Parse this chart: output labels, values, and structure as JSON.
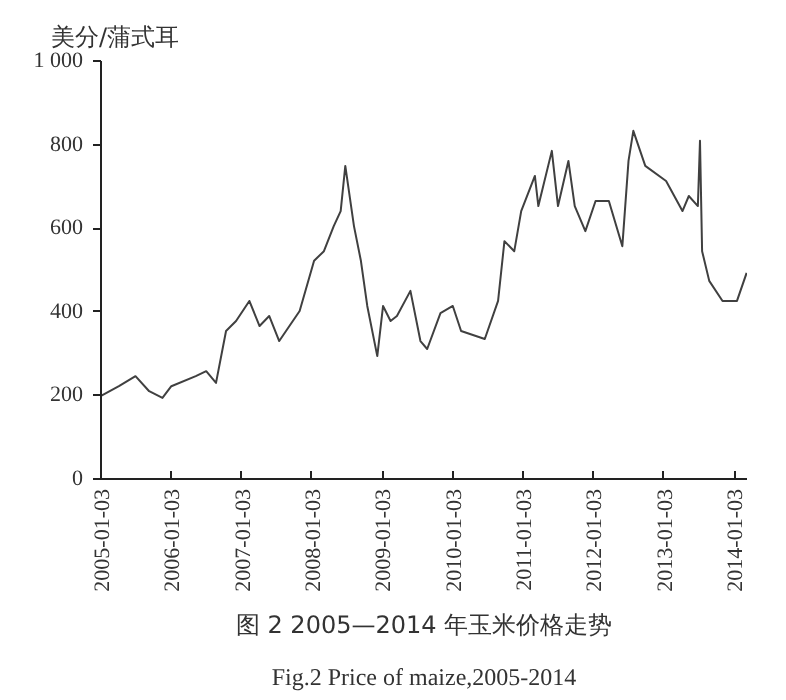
{
  "chart_data": {
    "type": "line",
    "title": "图 2 2005—2014 年玉米价格走势",
    "subtitle": "Fig.2 Price of maize,2005-2014",
    "ylabel": "美分/蒲式耳",
    "x": [
      "2005-01-03",
      "2005-04-06",
      "2005-07-01",
      "2005-09-10",
      "2005-11-18",
      "2006-01-03",
      "2006-05-10",
      "2006-07-03",
      "2006-08-23",
      "2006-10-14",
      "2006-12-05",
      "2007-02-12",
      "2007-04-06",
      "2007-05-26",
      "2007-07-17",
      "2007-10-31",
      "2008-01-14",
      "2008-03-05",
      "2008-04-25",
      "2008-05-31",
      "2008-06-24",
      "2008-08-08",
      "2008-09-13",
      "2008-10-16",
      "2008-12-07",
      "2009-01-06",
      "2009-02-14",
      "2009-03-19",
      "2009-05-28",
      "2009-07-19",
      "2009-08-23",
      "2009-10-31",
      "2010-01-03",
      "2010-02-15",
      "2010-06-18",
      "2010-08-26",
      "2010-09-28",
      "2010-11-18",
      "2010-12-24",
      "2011-03-05",
      "2011-03-23",
      "2011-06-01",
      "2011-07-03",
      "2011-08-26",
      "2011-09-28",
      "2011-11-22",
      "2012-01-14",
      "2012-03-23",
      "2012-06-01",
      "2012-07-03",
      "2012-07-28",
      "2012-09-28",
      "2013-01-14",
      "2013-04-09",
      "2013-05-12",
      "2013-06-28",
      "2013-07-09",
      "2013-07-20",
      "2013-08-26",
      "2013-11-03",
      "2014-01-17",
      "2014-03-08"
    ],
    "series": [
      {
        "color": "#404040",
        "values": [
          199,
          222,
          246,
          210,
          194,
          222,
          246,
          258,
          230,
          354,
          378,
          426,
          366,
          390,
          330,
          402,
          522,
          545,
          605,
          641,
          749,
          605,
          522,
          414,
          294,
          414,
          378,
          390,
          450,
          330,
          311,
          397,
          414,
          354,
          335,
          426,
          569,
          545,
          641,
          725,
          653,
          785,
          653,
          761,
          653,
          593,
          665,
          665,
          557,
          761,
          833,
          749,
          713,
          641,
          677,
          653,
          809,
          545,
          474,
          426,
          426,
          493
        ]
      }
    ],
    "xlim": [
      "2005-01-03",
      "2014-03-10"
    ],
    "xticks": [
      {
        "value": "2005-01-03",
        "label": "2005-01-03"
      },
      {
        "value": "2006-01-03",
        "label": "2006-01-03"
      },
      {
        "value": "2007-01-03",
        "label": "2007-01-03"
      },
      {
        "value": "2008-01-03",
        "label": "2008-01-03"
      },
      {
        "value": "2009-01-03",
        "label": "2009-01-03"
      },
      {
        "value": "2010-01-03",
        "label": "2010-01-03"
      },
      {
        "value": "2011-01-03",
        "label": "2011-01-03"
      },
      {
        "value": "2012-01-03",
        "label": "2012-01-03"
      },
      {
        "value": "2013-01-03",
        "label": "2013-01-03"
      },
      {
        "value": "2014-01-03",
        "label": "2014-01-03"
      }
    ],
    "ylim": [
      0,
      1000
    ],
    "yticks": [
      0,
      200,
      400,
      600,
      800,
      {
        "value": 1000,
        "label": "1 000"
      }
    ],
    "grid": false
  }
}
